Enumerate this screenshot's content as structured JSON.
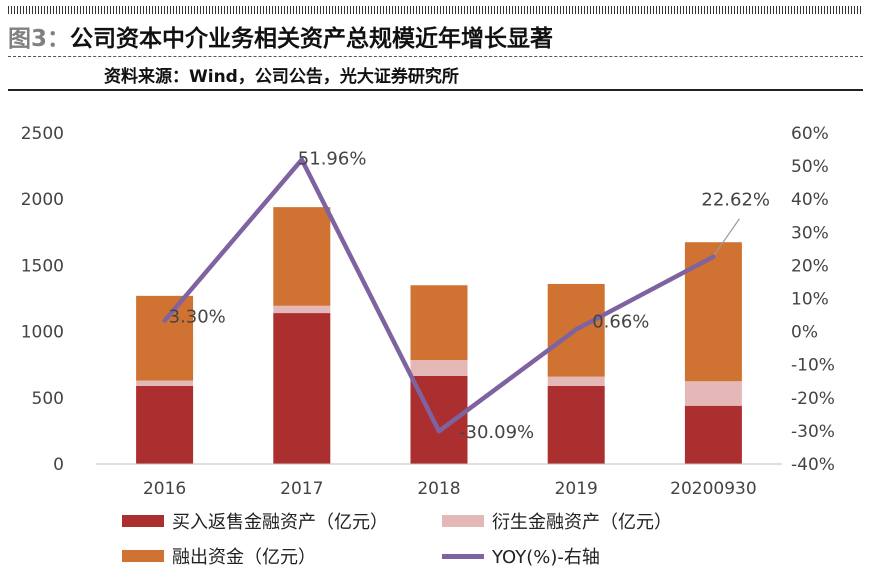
{
  "header": {
    "figure_label": "图3：",
    "title": "公司资本中介业务相关资产总规模近年增长显著",
    "source": "资料来源：Wind，公司公告，光大证券研究所"
  },
  "colors": {
    "buy_resale": "#ab2f2e",
    "derivatives": "#e3b8b7",
    "margin": "#d07232",
    "yoy": "#7f63a1"
  },
  "chart_data": {
    "type": "bar",
    "stacked": true,
    "categories": [
      "2016",
      "2017",
      "2018",
      "2019",
      "20200930"
    ],
    "series": [
      {
        "name": "买入返售金融资产（亿元）",
        "color": "#ab2f2e",
        "values": [
          590,
          1140,
          665,
          590,
          440
        ]
      },
      {
        "name": "衍生金融资产（亿元）",
        "color": "#e3b8b7",
        "values": [
          40,
          55,
          120,
          70,
          185
        ]
      },
      {
        "name": "融出资金（亿元）",
        "color": "#d07232",
        "values": [
          640,
          745,
          565,
          700,
          1050
        ]
      }
    ],
    "line_series": {
      "name": "YOY(%)-右轴",
      "color": "#7f63a1",
      "axis": "right",
      "values": [
        3.3,
        51.96,
        -30.09,
        0.66,
        22.62
      ],
      "labels": [
        "3.30%",
        "51.96%",
        "-30.09%",
        "0.66%",
        "22.62%"
      ]
    },
    "y_left": {
      "min": 0,
      "max": 2500,
      "ticks": [
        "0",
        "500",
        "1000",
        "1500",
        "2000",
        "2500"
      ]
    },
    "y_right": {
      "min": -40,
      "max": 60,
      "ticks": [
        "-40%",
        "-30%",
        "-20%",
        "-10%",
        "0%",
        "10%",
        "20%",
        "30%",
        "40%",
        "50%",
        "60%"
      ]
    },
    "legend": [
      {
        "label": "买入返售金融资产（亿元）",
        "kind": "box",
        "color": "#ab2f2e"
      },
      {
        "label": "衍生金融资产（亿元）",
        "kind": "box",
        "color": "#e3b8b7"
      },
      {
        "label": "融出资金（亿元）",
        "kind": "box",
        "color": "#d07232"
      },
      {
        "label": "YOY(%)-右轴",
        "kind": "line",
        "color": "#7f63a1"
      }
    ],
    "grid": false,
    "legend_position": "bottom"
  }
}
